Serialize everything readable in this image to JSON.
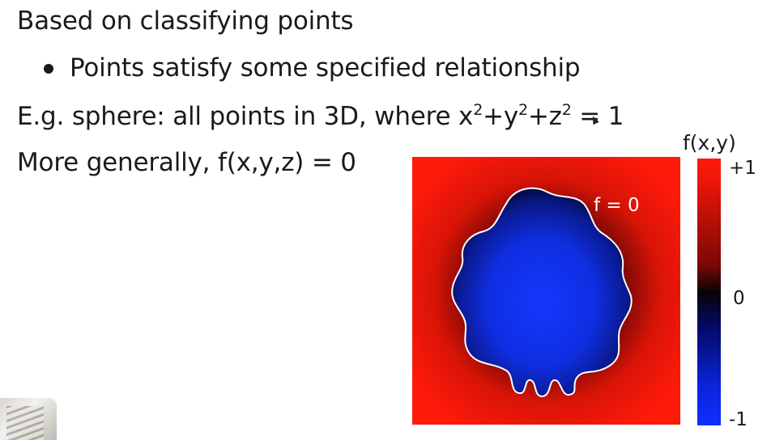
{
  "slide": {
    "line1": "Based on classifying points",
    "bullet1": "Points satisfy some specified relationship",
    "line3_prefix": "E.g. sphere: all points in 3D, where x",
    "line3_exp1": "2",
    "line3_mid1": "+y",
    "line3_exp2": "2",
    "line3_mid2": "+z",
    "line3_exp3": "2",
    "line3_suffix": " = 1",
    "line4": "More generally, f(x,y,z) = 0"
  },
  "figure": {
    "contour_label": "f = 0",
    "colorbar_title": "f(x,y)",
    "colorbar_ticks": {
      "top": "+1",
      "mid": "0",
      "bottom": "-1"
    },
    "colors": {
      "positive": "#ff1a0a",
      "zero": "#000000",
      "negative": "#1030ff",
      "contour": "#ffffff"
    }
  }
}
